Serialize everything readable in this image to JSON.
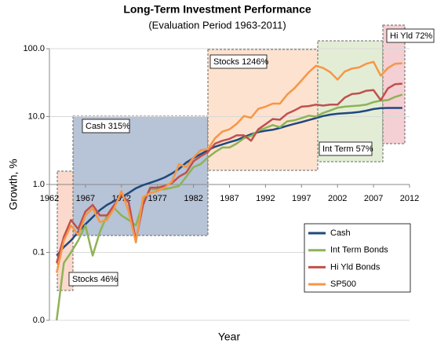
{
  "chart_data": {
    "type": "line",
    "title": "Long-Term Investment Performance",
    "subtitle": "(Evaluation Period 1963-2011)",
    "x_label": "Year",
    "y_label": "Growth, %",
    "log_scale": true,
    "grid": true,
    "x_axis_crossing": 1,
    "xlim": [
      1962,
      2012
    ],
    "xticks": [
      1962,
      1967,
      1972,
      1977,
      1982,
      1987,
      1992,
      1997,
      2002,
      2007,
      2012
    ],
    "ylim": [
      0.01,
      100
    ],
    "yticks": [
      {
        "value": 100,
        "label": "100.0"
      },
      {
        "value": 10,
        "label": "10.0"
      },
      {
        "value": 1,
        "label": "1.0"
      },
      {
        "value": 0.1,
        "label": "0.1"
      },
      {
        "value": 0.01,
        "label": "0.0"
      }
    ],
    "legend": "lower right",
    "annotations": [
      "Stocks 46%",
      "Cash 315%",
      "Stocks 1246%",
      "Int Term 57%",
      "Hi Yld 72%"
    ],
    "x": [
      1963,
      1964,
      1965,
      1966,
      1967,
      1968,
      1969,
      1970,
      1971,
      1972,
      1973,
      1974,
      1975,
      1976,
      1977,
      1978,
      1979,
      1980,
      1981,
      1982,
      1983,
      1984,
      1985,
      1986,
      1987,
      1988,
      1989,
      1990,
      1991,
      1992,
      1993,
      1994,
      1995,
      1996,
      1997,
      1998,
      1999,
      2000,
      2001,
      2002,
      2003,
      2004,
      2005,
      2006,
      2007,
      2008,
      2009,
      2010,
      2011
    ],
    "series": [
      {
        "name": "Cash",
        "color": "#1f497d",
        "values": [
          0.09,
          0.12,
          0.15,
          0.2,
          0.26,
          0.33,
          0.42,
          0.5,
          0.57,
          0.65,
          0.75,
          0.88,
          0.98,
          1.06,
          1.15,
          1.27,
          1.45,
          1.7,
          2.1,
          2.45,
          2.8,
          3.2,
          3.6,
          3.9,
          4.2,
          4.5,
          5.0,
          5.5,
          5.9,
          6.2,
          6.4,
          6.8,
          7.3,
          7.8,
          8.3,
          8.9,
          9.5,
          10.2,
          10.7,
          11.0,
          11.2,
          11.4,
          11.7,
          12.2,
          12.9,
          13.3,
          13.4,
          13.4,
          13.4
        ]
      },
      {
        "name": "Int Term Bonds",
        "color": "#8db356",
        "values": [
          0.01,
          0.07,
          0.1,
          0.15,
          0.25,
          0.09,
          0.2,
          0.35,
          0.45,
          0.35,
          0.3,
          0.25,
          0.55,
          0.85,
          0.85,
          0.85,
          0.9,
          0.95,
          1.3,
          1.8,
          2.0,
          2.5,
          3.0,
          3.5,
          3.5,
          4.0,
          4.8,
          5.2,
          6.2,
          6.8,
          7.5,
          7.0,
          8.5,
          8.8,
          9.5,
          10.3,
          10.0,
          11.3,
          12.3,
          13.5,
          14.0,
          14.3,
          14.5,
          15.0,
          16.3,
          17.2,
          17.5,
          19.5,
          21.0
        ]
      },
      {
        "name": "Hi Yld Bonds",
        "color": "#c0504d",
        "values": [
          0.07,
          0.17,
          0.3,
          0.22,
          0.4,
          0.5,
          0.35,
          0.35,
          0.5,
          0.7,
          0.55,
          0.15,
          0.5,
          0.9,
          0.9,
          0.95,
          1.05,
          1.3,
          1.5,
          2.2,
          2.6,
          3.0,
          4.0,
          4.4,
          4.7,
          5.3,
          5.3,
          4.4,
          6.5,
          7.7,
          9.2,
          9.0,
          11.0,
          12.3,
          14.0,
          14.3,
          15.0,
          14.5,
          15.0,
          15.0,
          19.0,
          21.5,
          22.0,
          24.0,
          24.5,
          17.5,
          26.0,
          30.0,
          30.5
        ]
      },
      {
        "name": "SP500",
        "color": "#f79646",
        "values": [
          0.05,
          0.15,
          0.25,
          0.18,
          0.35,
          0.45,
          0.28,
          0.3,
          0.45,
          0.8,
          0.4,
          0.14,
          0.65,
          0.75,
          0.8,
          0.9,
          1.1,
          2.0,
          1.8,
          2.5,
          3.2,
          3.3,
          4.8,
          6.0,
          6.5,
          7.8,
          10.2,
          9.6,
          13.0,
          14.0,
          15.5,
          15.5,
          21.0,
          26.0,
          34.0,
          45.0,
          56.0,
          52.0,
          45.0,
          35.0,
          46.0,
          51.0,
          53.0,
          60.0,
          64.0,
          40.0,
          52.0,
          60.0,
          61.0
        ]
      }
    ]
  }
}
